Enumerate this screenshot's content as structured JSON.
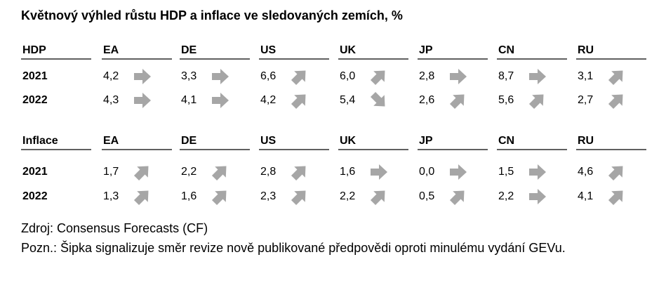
{
  "title": "Květnový výhled růstu HDP a inflace ve sledovaných zemích, %",
  "tables": [
    {
      "header": [
        "HDP",
        "EA",
        "DE",
        "US",
        "UK",
        "JP",
        "CN",
        "RU"
      ],
      "rows": [
        {
          "label": "2021",
          "cells": [
            {
              "value": "4,2",
              "arrow": "right"
            },
            {
              "value": "3,3",
              "arrow": "right"
            },
            {
              "value": "6,6",
              "arrow": "up"
            },
            {
              "value": "6,0",
              "arrow": "up"
            },
            {
              "value": "2,8",
              "arrow": "right"
            },
            {
              "value": "8,7",
              "arrow": "right"
            },
            {
              "value": "3,1",
              "arrow": "up"
            }
          ]
        },
        {
          "label": "2022",
          "cells": [
            {
              "value": "4,3",
              "arrow": "right"
            },
            {
              "value": "4,1",
              "arrow": "right"
            },
            {
              "value": "4,2",
              "arrow": "up"
            },
            {
              "value": "5,4",
              "arrow": "down"
            },
            {
              "value": "2,6",
              "arrow": "up"
            },
            {
              "value": "5,6",
              "arrow": "up"
            },
            {
              "value": "2,7",
              "arrow": "up"
            }
          ]
        }
      ]
    },
    {
      "header": [
        "Inflace",
        "EA",
        "DE",
        "US",
        "UK",
        "JP",
        "CN",
        "RU"
      ],
      "rows": [
        {
          "label": "2021",
          "cells": [
            {
              "value": "1,7",
              "arrow": "up"
            },
            {
              "value": "2,2",
              "arrow": "up"
            },
            {
              "value": "2,8",
              "arrow": "up"
            },
            {
              "value": "1,6",
              "arrow": "right"
            },
            {
              "value": "0,0",
              "arrow": "right"
            },
            {
              "value": "1,5",
              "arrow": "right"
            },
            {
              "value": "4,6",
              "arrow": "up"
            }
          ]
        },
        {
          "label": "2022",
          "cells": [
            {
              "value": "1,3",
              "arrow": "up"
            },
            {
              "value": "1,6",
              "arrow": "up"
            },
            {
              "value": "2,3",
              "arrow": "up"
            },
            {
              "value": "2,2",
              "arrow": "up"
            },
            {
              "value": "0,5",
              "arrow": "up"
            },
            {
              "value": "2,2",
              "arrow": "right"
            },
            {
              "value": "4,1",
              "arrow": "up"
            }
          ]
        }
      ]
    }
  ],
  "source": "Zdroj: Consensus Forecasts (CF)",
  "note": "Pozn.: Šipka signalizuje směr revize nově publikované předpovědi oproti minulému vydání GEVu."
}
